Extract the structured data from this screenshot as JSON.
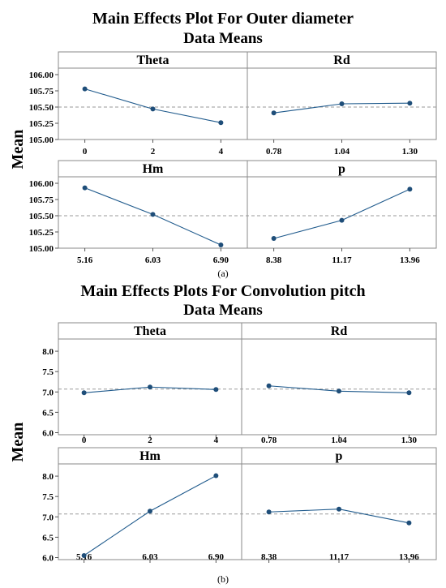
{
  "colors": {
    "series": "#1f5a8c",
    "point": "#1f4e79",
    "reference_line": "#9a9a9a",
    "frame": "#8a8a8a"
  },
  "chart_data": [
    {
      "type": "line",
      "title": "Main Effects Plot For Outer diameter",
      "subtitle": "Data Means",
      "ylabel": "Mean",
      "caption": "(a)",
      "ylim": [
        105.0,
        106.1
      ],
      "yticks": [
        "105.00",
        "105.25",
        "105.50",
        "105.75",
        "106.00"
      ],
      "reference_mean": 105.5,
      "panels": [
        {
          "name": "Theta",
          "categories": [
            "0",
            "2",
            "4"
          ],
          "values": [
            105.78,
            105.47,
            105.26
          ]
        },
        {
          "name": "Rd",
          "categories": [
            "0.78",
            "1.04",
            "1.30"
          ],
          "values": [
            105.41,
            105.55,
            105.56
          ]
        },
        {
          "name": "Hm",
          "categories": [
            "5.16",
            "6.03",
            "6.90"
          ],
          "values": [
            105.93,
            105.52,
            105.05
          ]
        },
        {
          "name": "p",
          "categories": [
            "8.38",
            "11.17",
            "13.96"
          ],
          "values": [
            105.15,
            105.43,
            105.91
          ]
        }
      ]
    },
    {
      "type": "line",
      "title": "Main Effects Plots For Convolution pitch",
      "subtitle": "Data Means",
      "ylabel": "Mean",
      "caption": "(b)",
      "ylim": [
        5.95,
        8.3
      ],
      "yticks": [
        "6.0",
        "6.5",
        "7.0",
        "7.5",
        "8.0"
      ],
      "reference_mean": 7.07,
      "panels": [
        {
          "name": "Theta",
          "categories": [
            "0",
            "2",
            "4"
          ],
          "values": [
            6.98,
            7.12,
            7.06
          ]
        },
        {
          "name": "Rd",
          "categories": [
            "0.78",
            "1.04",
            "1.30"
          ],
          "values": [
            7.15,
            7.02,
            6.98
          ]
        },
        {
          "name": "Hm",
          "categories": [
            "5.16",
            "6.03",
            "6.90"
          ],
          "values": [
            6.05,
            7.14,
            8.01
          ]
        },
        {
          "name": "p",
          "categories": [
            "8.38",
            "11.17",
            "13.96"
          ],
          "values": [
            7.12,
            7.19,
            6.85
          ]
        }
      ]
    }
  ]
}
